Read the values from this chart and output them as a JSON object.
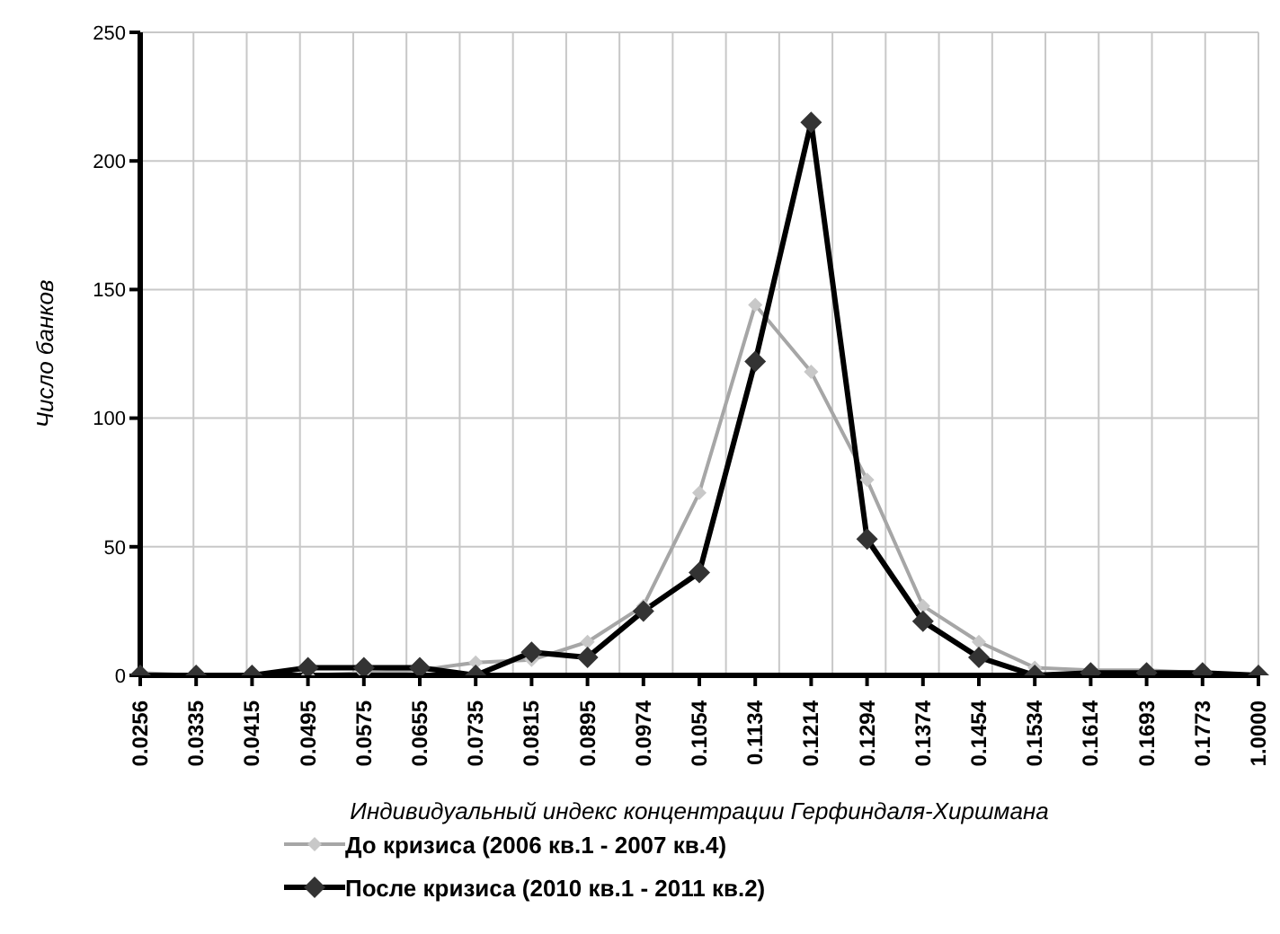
{
  "chart_data": {
    "type": "line",
    "xlabel": "Индивидуальный индекс концентрации Герфиндаля-Хиршмана",
    "ylabel": "Число банков",
    "categories": [
      "0.0256",
      "0.0335",
      "0.0415",
      "0.0495",
      "0.0575",
      "0.0655",
      "0.0735",
      "0.0815",
      "0.0895",
      "0.0974",
      "0.1054",
      "0.1134",
      "0.1214",
      "0.1294",
      "0.1374",
      "0.1454",
      "0.1534",
      "0.1614",
      "0.1693",
      "0.1773",
      "1.0000"
    ],
    "series": [
      {
        "name": "До кризиса (2006 кв.1 - 2007 кв.4)",
        "color": "#a6a6a6",
        "values": [
          1,
          0,
          0,
          0,
          1,
          2,
          5,
          6,
          13,
          27,
          71,
          144,
          118,
          76,
          27,
          13,
          3,
          2,
          2,
          1,
          0
        ]
      },
      {
        "name": "После кризиса (2010 кв.1 - 2011 кв.2)",
        "color": "#000000",
        "values": [
          0,
          0,
          0,
          3,
          3,
          3,
          0,
          9,
          7,
          25,
          40,
          122,
          215,
          53,
          21,
          7,
          0,
          1,
          1,
          1,
          0
        ]
      }
    ],
    "ylim": [
      0,
      250
    ],
    "yticks": [
      0,
      50,
      100,
      150,
      200,
      250
    ],
    "grid": true,
    "legend": "bottom left",
    "marker": "diamond",
    "line_style": "solid"
  }
}
